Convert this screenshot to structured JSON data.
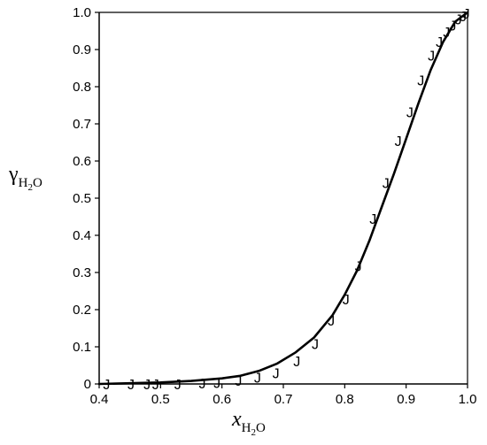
{
  "chart_data": {
    "type": "line",
    "xlabel": {
      "main": "x",
      "subscript": "H",
      "subsub": "2",
      "tail": "O"
    },
    "ylabel": {
      "main": "γ",
      "subscript": "H",
      "subsub": "2",
      "tail": "O"
    },
    "xlim": [
      0.4,
      1.0
    ],
    "ylim": [
      0.0,
      1.0
    ],
    "xticks": [
      "0.4",
      "0.5",
      "0.6",
      "0.7",
      "0.8",
      "0.9",
      "1.0"
    ],
    "yticks": [
      "0",
      "0.1",
      "0.2",
      "0.3",
      "0.4",
      "0.5",
      "0.6",
      "0.7",
      "0.8",
      "0.9",
      "1.0"
    ],
    "grid": false,
    "series": [
      {
        "kind": "line",
        "color": "#000000",
        "x": [
          0.4,
          0.45,
          0.5,
          0.55,
          0.6,
          0.63,
          0.66,
          0.69,
          0.72,
          0.75,
          0.78,
          0.8,
          0.82,
          0.84,
          0.86,
          0.88,
          0.9,
          0.92,
          0.94,
          0.96,
          0.98,
          1.0
        ],
        "y": [
          0.0,
          0.002,
          0.004,
          0.008,
          0.015,
          0.022,
          0.035,
          0.055,
          0.085,
          0.125,
          0.185,
          0.24,
          0.305,
          0.385,
          0.475,
          0.565,
          0.66,
          0.755,
          0.845,
          0.92,
          0.975,
          1.0
        ]
      },
      {
        "kind": "marker",
        "marker": "J",
        "color": "#000000",
        "x": [
          0.412,
          0.452,
          0.478,
          0.492,
          0.528,
          0.568,
          0.592,
          0.627,
          0.658,
          0.688,
          0.722,
          0.752,
          0.778,
          0.802,
          0.822,
          0.846,
          0.867,
          0.887,
          0.906,
          0.924,
          0.941,
          0.954,
          0.966,
          0.976,
          0.985,
          0.993,
          0.998
        ],
        "y": [
          0.0,
          0.0,
          0.0,
          0.0,
          0.0,
          0.002,
          0.003,
          0.01,
          0.018,
          0.03,
          0.062,
          0.108,
          0.172,
          0.228,
          0.318,
          0.445,
          0.542,
          0.655,
          0.732,
          0.818,
          0.885,
          0.921,
          0.948,
          0.965,
          0.982,
          0.99,
          0.998
        ]
      }
    ]
  }
}
